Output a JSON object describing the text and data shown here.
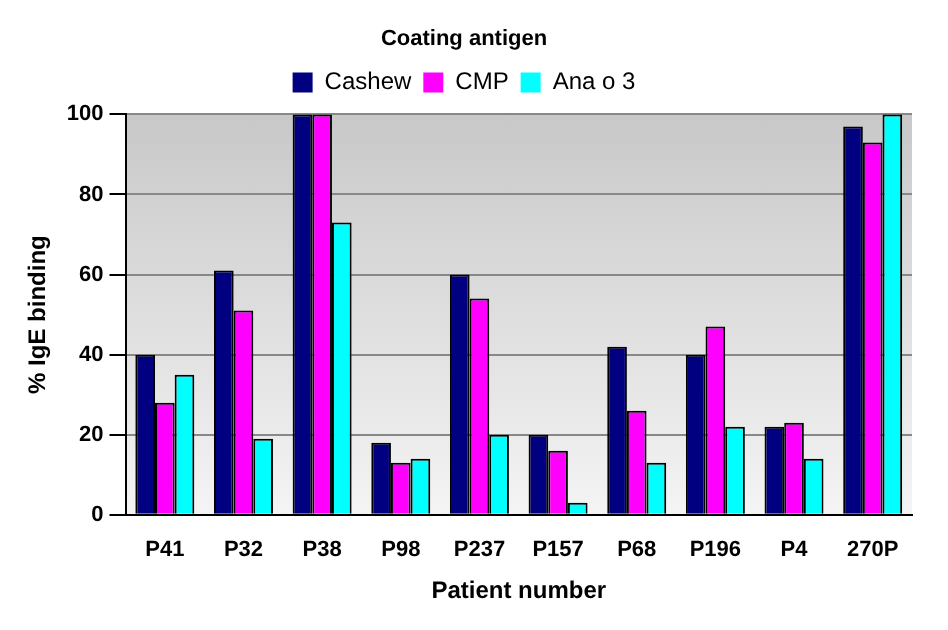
{
  "chart_data": {
    "type": "bar",
    "xlabel": "Patient number",
    "ylabel": "% IgE binding",
    "legend_title": "Coating antigen",
    "categories": [
      "P41",
      "P32",
      "P38",
      "P98",
      "P237",
      "P157",
      "P68",
      "P196",
      "P4",
      "270P"
    ],
    "series": [
      {
        "name": "Cashew",
        "color": "#000080",
        "values": [
          40,
          61,
          100,
          18,
          60,
          20,
          42,
          40,
          22,
          97
        ]
      },
      {
        "name": "CMP",
        "color": "#ff00ff",
        "values": [
          28,
          51,
          100,
          13,
          54,
          16,
          26,
          47,
          23,
          93
        ]
      },
      {
        "name": "Ana o 3",
        "color": "#00ffff",
        "values": [
          35,
          19,
          73,
          14,
          20,
          3,
          13,
          22,
          14,
          100
        ]
      }
    ],
    "ylim": [
      0,
      100
    ],
    "yticks": [
      0,
      20,
      40,
      60,
      80,
      100
    ],
    "grid": "y",
    "legend": "top"
  }
}
